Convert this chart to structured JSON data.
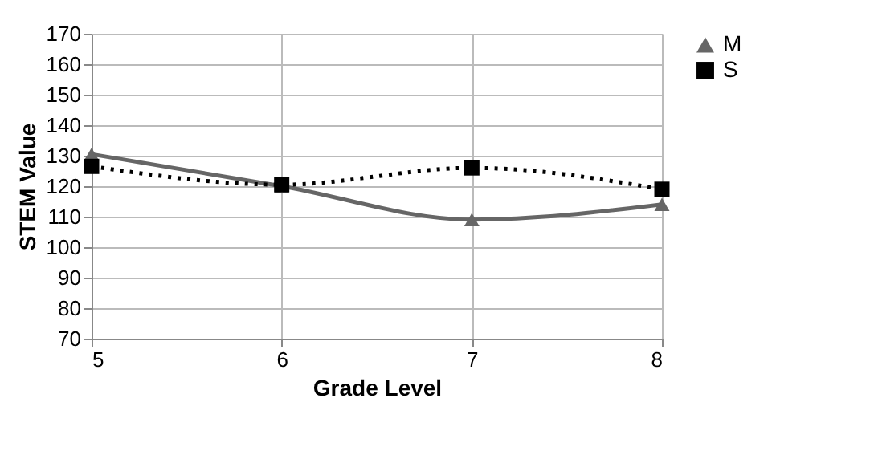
{
  "chart_data": {
    "type": "line",
    "xlabel": "Grade Level",
    "ylabel": "STEM Value",
    "x": [
      5,
      6,
      7,
      8
    ],
    "xlim": [
      5,
      8
    ],
    "xticks": [
      5,
      6,
      7,
      8
    ],
    "ylim": [
      70,
      170
    ],
    "yticks": [
      70,
      80,
      90,
      100,
      110,
      120,
      130,
      140,
      150,
      160,
      170
    ],
    "grid": true,
    "legend": "right",
    "series": [
      {
        "name": "M",
        "color": "#666666",
        "values": [
          130.5,
          120,
          109,
          114
        ],
        "marker": "triangle",
        "line_style": "solid"
      },
      {
        "name": "S",
        "color": "#000000",
        "values": [
          126.5,
          120.5,
          126,
          119
        ],
        "marker": "square",
        "line_style": "dotted"
      }
    ]
  }
}
